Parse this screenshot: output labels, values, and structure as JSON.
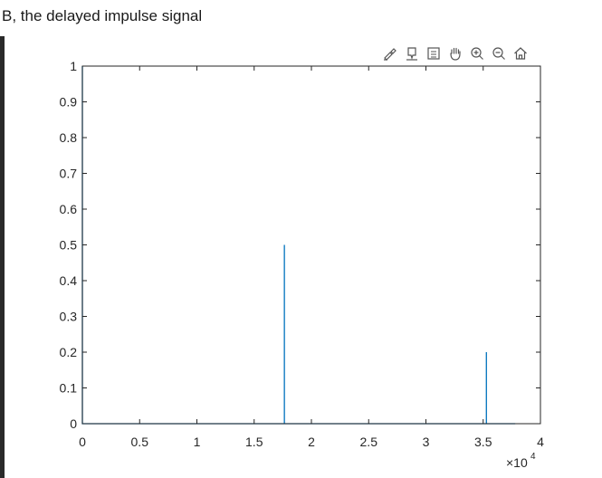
{
  "heading": "B, the delayed impulse signal",
  "toolbar": {
    "icons": [
      "brush-icon",
      "data-tips-icon",
      "legend-icon",
      "pan-hand-icon",
      "zoom-in-icon",
      "zoom-out-icon",
      "home-icon"
    ]
  },
  "colors": {
    "line": "#0072bd",
    "axes": "#262626",
    "frame": "#262626"
  },
  "chart_data": {
    "type": "line",
    "title": "",
    "xlabel": "",
    "ylabel": "",
    "xlim": [
      0,
      40000
    ],
    "ylim": [
      0,
      1
    ],
    "x_exponent_label": "×10",
    "x_exponent_power": "4",
    "x_ticks": [
      0,
      5000,
      10000,
      15000,
      20000,
      25000,
      30000,
      35000,
      40000
    ],
    "x_tick_labels": [
      "0",
      "0.5",
      "1",
      "1.5",
      "2",
      "2.5",
      "3",
      "3.5",
      "4"
    ],
    "y_ticks": [
      0,
      0.1,
      0.2,
      0.3,
      0.4,
      0.5,
      0.6,
      0.7,
      0.8,
      0.9,
      1
    ],
    "y_tick_labels": [
      "0",
      "0.1",
      "0.2",
      "0.3",
      "0.4",
      "0.5",
      "0.6",
      "0.7",
      "0.8",
      "0.9",
      "1"
    ],
    "grid": false,
    "series": [
      {
        "points": [
          [
            0,
            1
          ],
          [
            1,
            0
          ],
          [
            17640,
            0
          ],
          [
            17640,
            0.5
          ],
          [
            17641,
            0
          ],
          [
            35280,
            0
          ],
          [
            35280,
            0.2
          ],
          [
            35281,
            0
          ],
          [
            37800,
            0
          ]
        ]
      }
    ]
  }
}
